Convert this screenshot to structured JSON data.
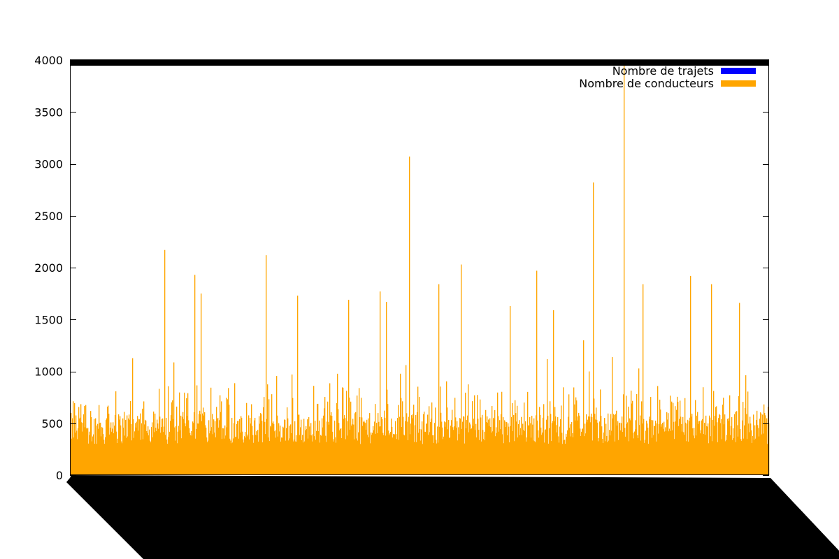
{
  "chart_data": {
    "type": "bar",
    "title": "",
    "xlabel": "",
    "ylabel": "",
    "ylim": [
      0,
      4000
    ],
    "ytick_values": [
      0,
      500,
      1000,
      1500,
      2000,
      2500,
      3000,
      3500,
      4000
    ],
    "ytick_labels": [
      "0",
      "500",
      "1000",
      "1500",
      "2000",
      "2500",
      "3000",
      "3500",
      "4000"
    ],
    "x_tick_labels_legible": false,
    "series": [
      {
        "name": "Nombre de trajets",
        "color": "#0000ff",
        "note": "values exceed the y-axis range (drawn as a band at the top)",
        "values": []
      },
      {
        "name": "Nombre de conducteurs",
        "color": "#ffa500",
        "profile_note": "about 1000 narrow bars; typical height 300-800; approximate readings only",
        "peaks": [
          {
            "position": 0.135,
            "value": 2170
          },
          {
            "position": 0.178,
            "value": 1930
          },
          {
            "position": 0.187,
            "value": 1750
          },
          {
            "position": 0.28,
            "value": 2120
          },
          {
            "position": 0.325,
            "value": 1730
          },
          {
            "position": 0.398,
            "value": 1690
          },
          {
            "position": 0.443,
            "value": 1770
          },
          {
            "position": 0.452,
            "value": 1670
          },
          {
            "position": 0.485,
            "value": 3070
          },
          {
            "position": 0.528,
            "value": 1840
          },
          {
            "position": 0.56,
            "value": 2030
          },
          {
            "position": 0.63,
            "value": 1630
          },
          {
            "position": 0.668,
            "value": 1970
          },
          {
            "position": 0.692,
            "value": 1590
          },
          {
            "position": 0.749,
            "value": 2820
          },
          {
            "position": 0.793,
            "value": 4000
          },
          {
            "position": 0.82,
            "value": 1840
          },
          {
            "position": 0.888,
            "value": 1920
          },
          {
            "position": 0.918,
            "value": 1840
          },
          {
            "position": 0.958,
            "value": 1660
          }
        ]
      }
    ],
    "legend": "top-right"
  },
  "legend": {
    "items": [
      {
        "label": "Nombre de trajets",
        "color": "#0000ff"
      },
      {
        "label": "Nombre de conducteurs",
        "color": "#ffa500"
      }
    ]
  }
}
